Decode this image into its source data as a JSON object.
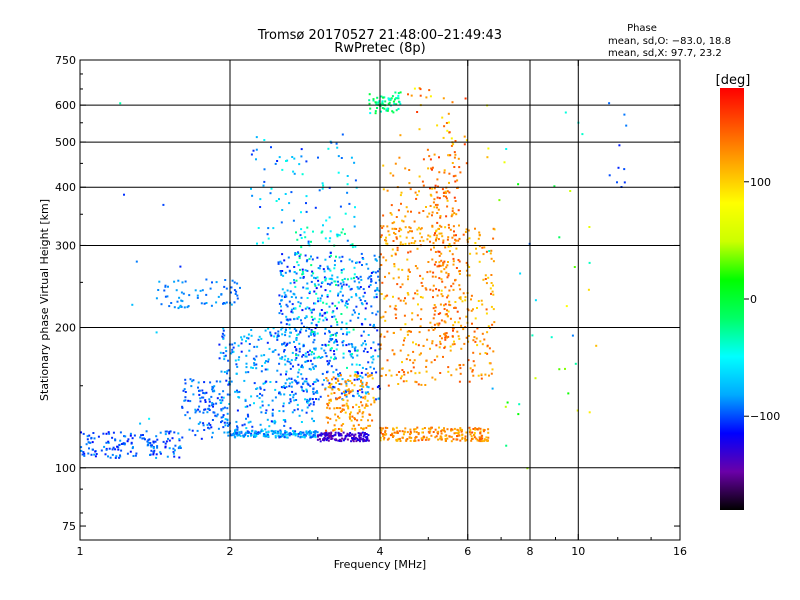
{
  "chart_data": {
    "type": "scatter",
    "title": "Tromsø 20170527 21:48:00–21:49:43",
    "subtitle": "RwPretec (8p)",
    "xlabel": "Frequency [MHz]",
    "ylabel": "Stationary phase Virtual Height [km]",
    "x_scale": "log",
    "y_scale": "log",
    "xlim": [
      1,
      16
    ],
    "ylim": [
      70,
      750
    ],
    "x_ticks": [
      1,
      2,
      4,
      6,
      8,
      10,
      16
    ],
    "x_tick_labels": [
      "1",
      "2",
      "4",
      "6",
      "8",
      "10",
      "16"
    ],
    "y_ticks": [
      75,
      100,
      200,
      300,
      400,
      500,
      600,
      750
    ],
    "y_tick_labels": [
      "75",
      "100",
      "200",
      "300",
      "400",
      "500",
      "600",
      "750"
    ],
    "x_grid": [
      2,
      4,
      6,
      8,
      10
    ],
    "y_grid": [
      100,
      200,
      300,
      400,
      500,
      600
    ],
    "grid": true,
    "stats": {
      "header": "Phase",
      "line1": "mean, sd,O: −83.0, 18.8",
      "line2": "mean, sd,X:  97.7, 23.2"
    },
    "colorbar": {
      "title": "[deg]",
      "range": [
        -180,
        180
      ],
      "ticks": [
        100,
        0,
        -100
      ],
      "tick_labels": [
        "100",
        "0",
        "−100"
      ],
      "colors": [
        "#000000",
        "#6a00a8",
        "#0000ff",
        "#00aaff",
        "#00ffff",
        "#00ff66",
        "#00ff00",
        "#ccff00",
        "#ffff00",
        "#ffaa00",
        "#ff5500",
        "#ff0000"
      ]
    },
    "clusters": [
      {
        "x": [
          1.0,
          1.6
        ],
        "y": [
          105,
          120
        ],
        "phase": [
          -115,
          -80
        ],
        "n": 160
      },
      {
        "x": [
          1.6,
          2.0
        ],
        "y": [
          115,
          155
        ],
        "phase": [
          -110,
          -80
        ],
        "n": 120
      },
      {
        "x": [
          1.9,
          3.0
        ],
        "y": [
          118,
          200
        ],
        "phase": [
          -110,
          -60
        ],
        "n": 320
      },
      {
        "x": [
          2.5,
          4.0
        ],
        "y": [
          140,
          290
        ],
        "phase": [
          -115,
          -70
        ],
        "n": 520
      },
      {
        "x": [
          2.7,
          3.6
        ],
        "y": [
          160,
          330
        ],
        "phase": [
          -60,
          -20
        ],
        "n": 120
      },
      {
        "x": [
          2.2,
          3.6
        ],
        "y": [
          300,
          520
        ],
        "phase": [
          -110,
          -40
        ],
        "n": 90
      },
      {
        "x": [
          1.4,
          2.1
        ],
        "y": [
          220,
          255
        ],
        "phase": [
          -100,
          -80
        ],
        "n": 70
      },
      {
        "x": [
          2.0,
          3.0
        ],
        "y": [
          116,
          120
        ],
        "phase": [
          -105,
          -60
        ],
        "n": 160
      },
      {
        "x": [
          3.0,
          3.8
        ],
        "y": [
          114,
          119
        ],
        "phase": [
          -150,
          -115
        ],
        "n": 140
      },
      {
        "x": [
          3.1,
          3.9
        ],
        "y": [
          120,
          160
        ],
        "phase": [
          100,
          145
        ],
        "n": 160
      },
      {
        "x": [
          4.0,
          6.6
        ],
        "y": [
          114,
          122
        ],
        "phase": [
          100,
          150
        ],
        "n": 220
      },
      {
        "x": [
          4.0,
          6.8
        ],
        "y": [
          150,
          330
        ],
        "phase": [
          95,
          150
        ],
        "n": 380
      },
      {
        "x": [
          4.0,
          5.8
        ],
        "y": [
          300,
          450
        ],
        "phase": [
          100,
          150
        ],
        "n": 110
      },
      {
        "x": [
          5.0,
          5.8
        ],
        "y": [
          180,
          480
        ],
        "phase": [
          110,
          160
        ],
        "n": 160
      },
      {
        "x": [
          3.8,
          4.4
        ],
        "y": [
          575,
          640
        ],
        "phase": [
          -50,
          0
        ],
        "n": 70
      },
      {
        "x": [
          4.3,
          6.0
        ],
        "y": [
          450,
          660
        ],
        "phase": [
          80,
          160
        ],
        "n": 40
      },
      {
        "x": [
          6.4,
          11.0
        ],
        "y": [
          90,
          600
        ],
        "phase": [
          -100,
          110
        ],
        "n": 40
      },
      {
        "x": [
          11.5,
          12.5
        ],
        "y": [
          400,
          620
        ],
        "phase": [
          -110,
          -90
        ],
        "n": 10
      },
      {
        "x": [
          1.2,
          1.6
        ],
        "y": [
          85,
          620
        ],
        "phase": [
          -110,
          0
        ],
        "n": 10
      }
    ]
  }
}
